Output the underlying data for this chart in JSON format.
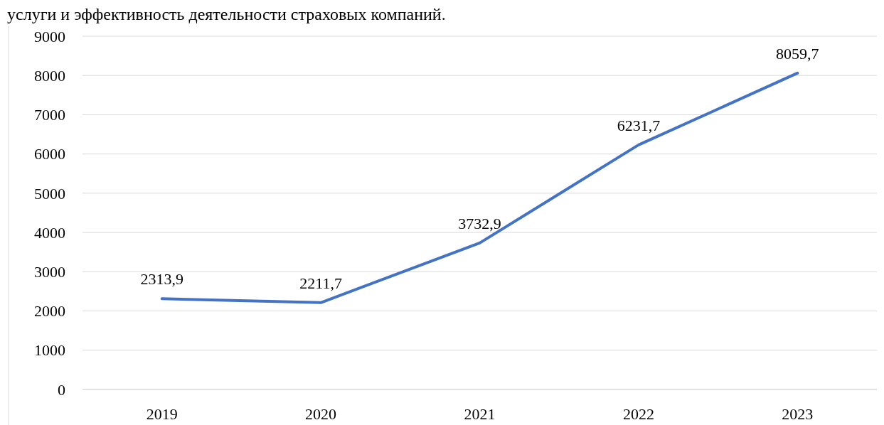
{
  "chart_data": {
    "type": "line",
    "annotations": [
      "услуги и эффективность деятельности страховых компаний."
    ],
    "categories": [
      "2019",
      "2020",
      "2021",
      "2022",
      "2023"
    ],
    "series": [
      {
        "color": "#4472c4",
        "values": [
          2313.9,
          2211.7,
          3732.9,
          6231.7,
          8059.7
        ]
      }
    ],
    "value_labels": [
      "2313,9",
      "2211,7",
      "3732,9",
      "6231,7",
      "8059,7"
    ],
    "ylim": [
      0,
      9000
    ],
    "yticks": [
      0,
      1000,
      2000,
      3000,
      4000,
      5000,
      6000,
      7000,
      8000,
      9000
    ],
    "grid": "y",
    "marker": "none",
    "line_style": "solid"
  }
}
